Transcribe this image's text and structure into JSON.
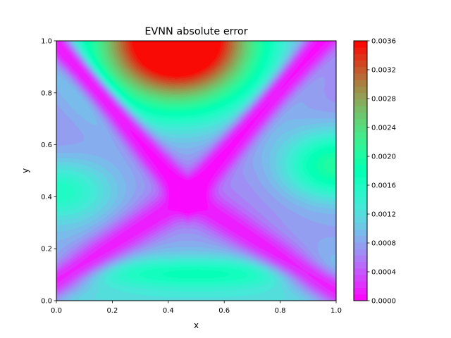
{
  "chart_data": {
    "type": "heatmap",
    "title": "EVNN absolute error",
    "xlabel": "x",
    "ylabel": "y",
    "xlim": [
      0,
      1
    ],
    "ylim": [
      0,
      1
    ],
    "x_ticks": [
      "0.0",
      "0.2",
      "0.4",
      "0.6",
      "0.8",
      "1.0"
    ],
    "y_ticks": [
      "0.0",
      "0.2",
      "0.4",
      "0.6",
      "0.8",
      "1.0"
    ],
    "colormap": "rainbow",
    "colorbar": {
      "range": [
        0,
        0.0036
      ],
      "ticks": [
        "0.0000",
        "0.0004",
        "0.0008",
        "0.0012",
        "0.0016",
        "0.0020",
        "0.0024",
        "0.0028",
        "0.0032",
        "0.0036"
      ],
      "levels": 40
    },
    "features": [
      {
        "x": 0.43,
        "y": 1.0,
        "value": 0.0036
      },
      {
        "x": 0.47,
        "y": 0.4,
        "value": 0.0001
      },
      {
        "x": 0.5,
        "y": 0.1,
        "value": 0.0011
      },
      {
        "x": 0.02,
        "y": 0.42,
        "value": 0.001
      },
      {
        "x": 1.0,
        "y": 0.52,
        "value": 0.0014
      },
      {
        "x": 0.5,
        "y": 0.0,
        "value": 0.0004
      }
    ]
  }
}
